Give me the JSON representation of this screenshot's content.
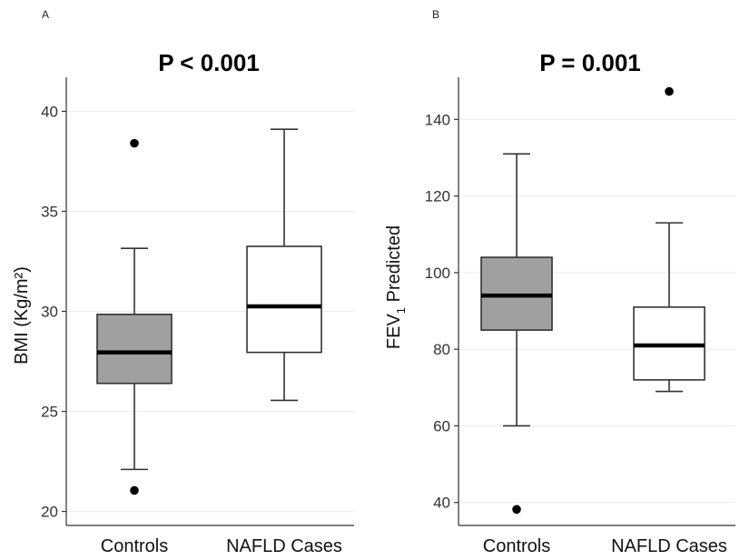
{
  "chart_data": [
    {
      "type": "boxplot",
      "panel": "A",
      "title": "P < 0.001",
      "ylabel": "BMI (Kg/m²)",
      "categories": [
        "Controls",
        "NAFLD Cases"
      ],
      "ylim": [
        19.3,
        41.7
      ],
      "yticks": [
        20,
        25,
        30,
        35,
        40
      ],
      "grid": true,
      "boxes": [
        {
          "category": "Controls",
          "fill": "#a0a0a0",
          "whisker_low": 22.1,
          "q1": 26.4,
          "median": 27.95,
          "q3": 29.85,
          "whisker_high": 33.15,
          "outliers": [
            38.4,
            21.05
          ]
        },
        {
          "category": "NAFLD Cases",
          "fill": "#ffffff",
          "whisker_low": 25.55,
          "q1": 27.95,
          "median": 30.25,
          "q3": 33.25,
          "whisker_high": 39.1,
          "outliers": []
        }
      ]
    },
    {
      "type": "boxplot",
      "panel": "B",
      "title": "P = 0.001",
      "ylabel": "FEV1 Predicted",
      "ylabel_main": "FEV",
      "ylabel_sub": "1",
      "ylabel_rest": " Predicted",
      "categories": [
        "Controls",
        "NAFLD Cases"
      ],
      "ylim": [
        34,
        151
      ],
      "yticks": [
        40,
        60,
        80,
        100,
        120,
        140
      ],
      "grid": true,
      "boxes": [
        {
          "category": "Controls",
          "fill": "#a0a0a0",
          "whisker_low": 60,
          "q1": 85,
          "median": 94,
          "q3": 104,
          "whisker_high": 131,
          "outliers": [
            38.2
          ]
        },
        {
          "category": "NAFLD Cases",
          "fill": "#ffffff",
          "whisker_low": 69,
          "q1": 72,
          "median": 81,
          "q3": 91,
          "whisker_high": 113,
          "outliers": [
            147.3
          ]
        }
      ]
    }
  ]
}
